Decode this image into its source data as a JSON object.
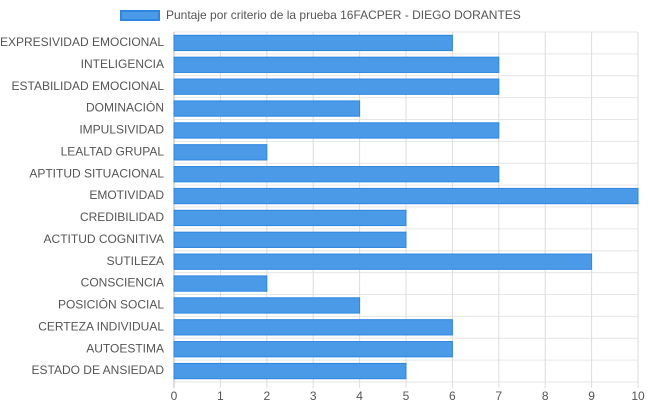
{
  "chart_data": {
    "type": "bar",
    "orientation": "horizontal",
    "legend_position": "top",
    "grid": true,
    "series": [
      {
        "name": "Puntaje por criterio de la prueba 16FACPER - DIEGO DORANTES",
        "color": "#4a9ae8",
        "border_color": "#2f86e0",
        "values": [
          6,
          7,
          7,
          4,
          7,
          2,
          7,
          10,
          5,
          5,
          9,
          2,
          4,
          6,
          6,
          5
        ]
      }
    ],
    "categories": [
      "EXPRESIVIDAD EMOCIONAL",
      "INTELIGENCIA",
      "ESTABILIDAD EMOCIONAL",
      "DOMINACIÓN",
      "IMPULSIVIDAD",
      "LEALTAD GRUPAL",
      "APTITUD SITUACIONAL",
      "EMOTIVIDAD",
      "CREDIBILIDAD",
      "ACTITUD COGNITIVA",
      "SUTILEZA",
      "CONSCIENCIA",
      "POSICIÓN SOCIAL",
      "CERTEZA INDIVIDUAL",
      "AUTOESTIMA",
      "ESTADO DE ANSIEDAD"
    ],
    "xlim": [
      0,
      10
    ],
    "xticks": [
      "0",
      "1",
      "2",
      "3",
      "4",
      "5",
      "6",
      "7",
      "8",
      "9",
      "10"
    ]
  }
}
